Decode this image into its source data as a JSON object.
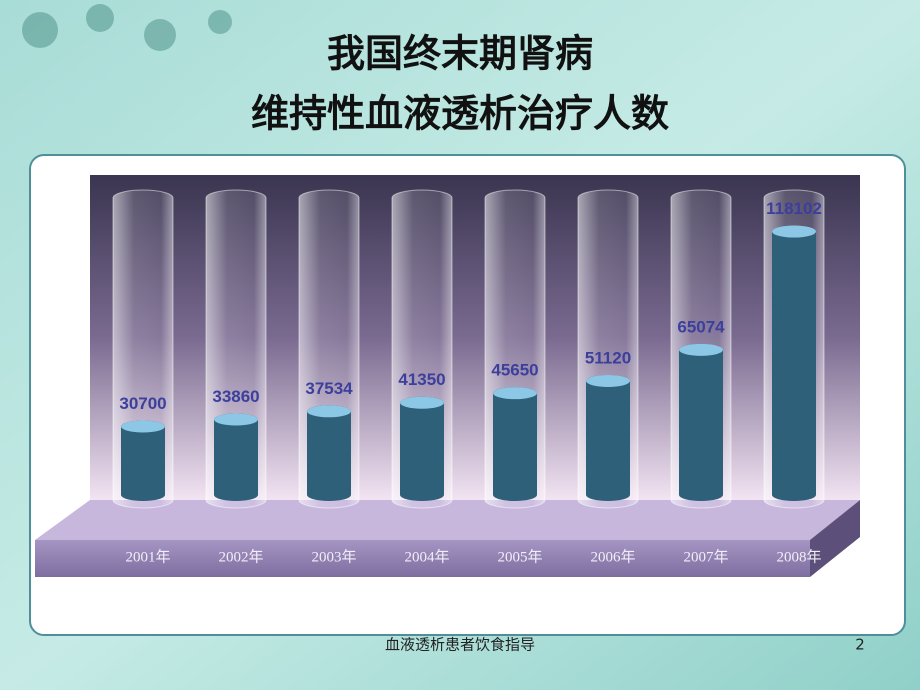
{
  "chart_data": {
    "type": "bar",
    "title": "我国终末期肾病",
    "subtitle": "维持性血液透析治疗人数",
    "categories": [
      "2001年",
      "2002年",
      "2003年",
      "2004年",
      "2005年",
      "2006年",
      "2007年",
      "2008年"
    ],
    "values": [
      30700,
      33860,
      37534,
      41350,
      45650,
      51120,
      65074,
      118102
    ],
    "color": "#2f6079",
    "ylim": [
      0,
      130000
    ]
  },
  "footer": "血液透析患者饮食指导",
  "page_number": "2"
}
